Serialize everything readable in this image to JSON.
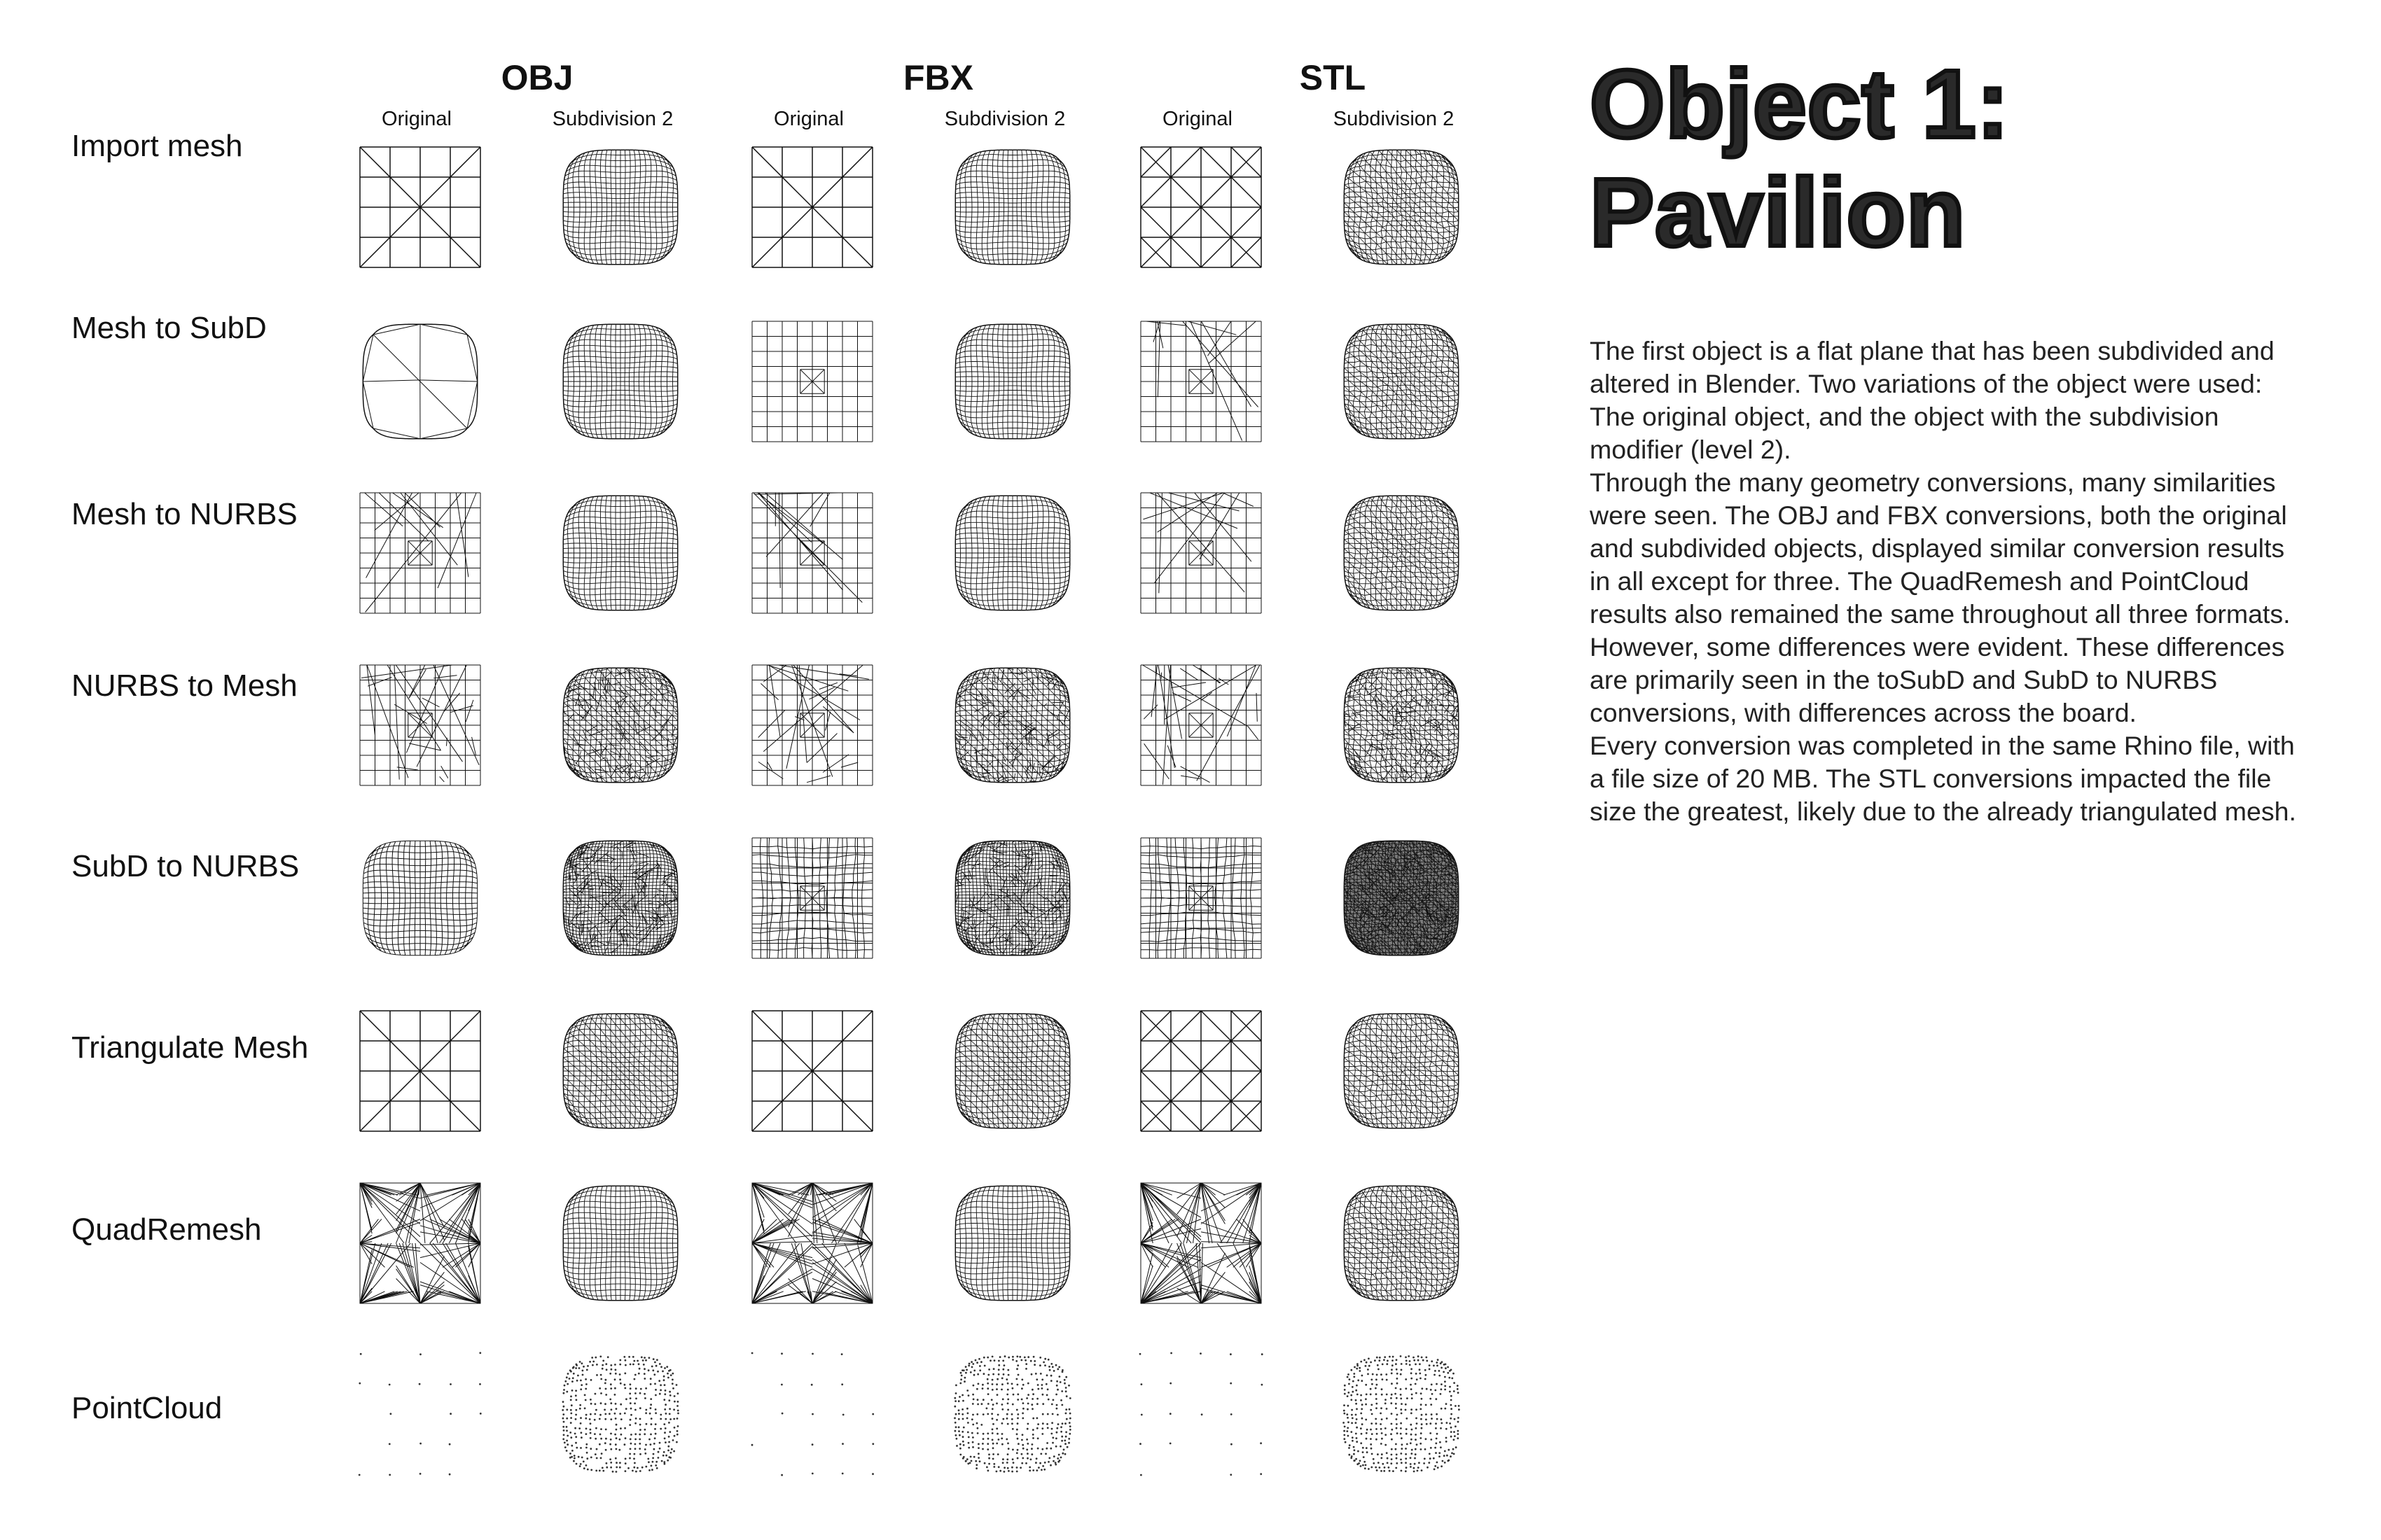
{
  "columns": [
    {
      "name": "OBJ",
      "original_label": "Original",
      "subdivided_label": "Subdivision 2"
    },
    {
      "name": "FBX",
      "original_label": "Original",
      "subdivided_label": "Subdivision 2"
    },
    {
      "name": "STL",
      "original_label": "Original",
      "subdivided_label": "Subdivision 2"
    }
  ],
  "rows": [
    {
      "label": "Import mesh"
    },
    {
      "label": "Mesh to SubD"
    },
    {
      "label": "Mesh to NURBS"
    },
    {
      "label": "NURBS to Mesh"
    },
    {
      "label": "SubD to NURBS"
    },
    {
      "label": "Triangulate Mesh"
    },
    {
      "label": "QuadRemesh"
    },
    {
      "label": "PointCloud"
    }
  ],
  "title": {
    "line1": "Object 1:",
    "line2": "Pavilion"
  },
  "description_lines": [
    "The first object is a flat plane that has been subdivided and",
    "altered in Blender. Two variations of the object were used:",
    "The original object, and the object with the subdivision",
    "modifier (level 2).",
    "Through the many geometry conversions, many similarities",
    "were seen. The OBJ and FBX conversions, both the original",
    "and subdivided objects, displayed similar conversion results",
    "in all except for three. The QuadRemesh and PointCloud",
    "results also remained the same throughout all three formats.",
    "However, some differences were evident. These differences",
    "are primarily seen in the toSubD and SubD to NURBS",
    "conversions, with differences across the board.",
    "Every conversion was completed in the same Rhino file, with",
    "a file size of 20 MB. The STL conversions impacted the file",
    "size the greatest, likely due to the already triangulated mesh."
  ],
  "colors": {
    "ink": "#111111",
    "background": "#ffffff"
  }
}
